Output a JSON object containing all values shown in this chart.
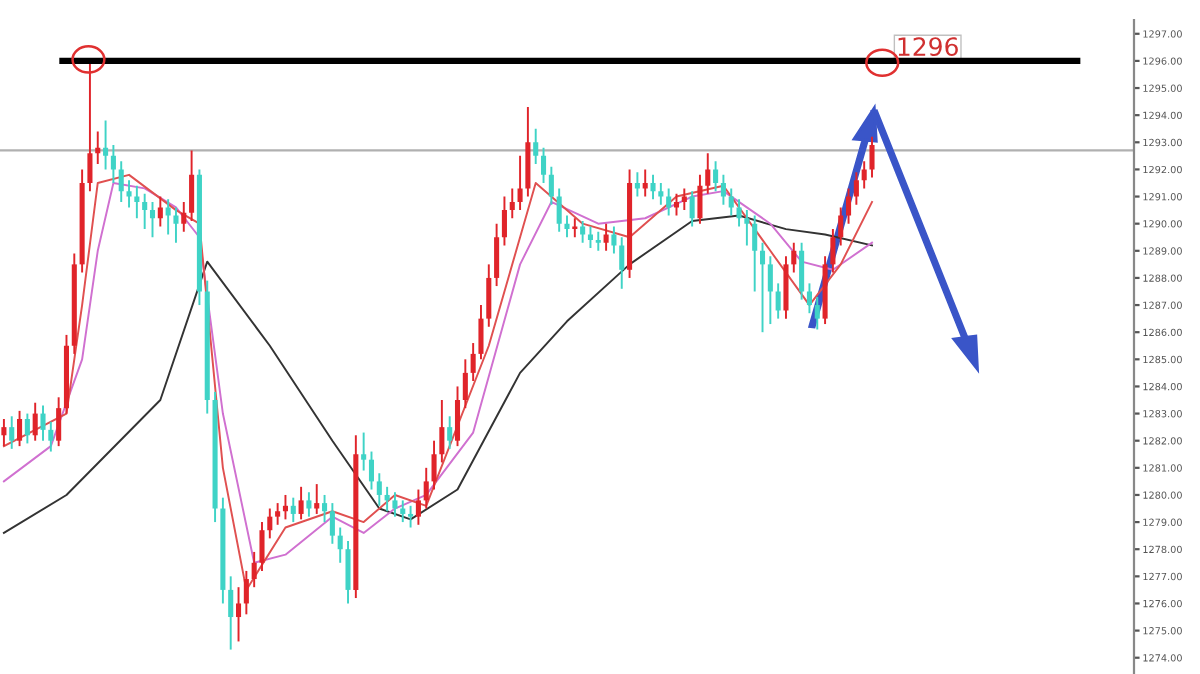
{
  "chart_data": {
    "type": "candlestick",
    "categories": [
      null,
      null,
      null,
      null,
      null,
      null,
      null,
      null,
      null,
      null,
      null,
      null,
      null,
      null,
      null,
      null,
      null,
      null,
      null,
      null,
      null,
      null,
      null,
      null,
      null,
      null,
      null,
      null,
      null,
      null,
      null,
      null,
      null,
      null,
      null,
      null,
      null,
      null,
      null,
      null,
      null,
      null,
      null,
      null,
      null,
      null,
      null,
      null,
      null,
      null,
      null,
      null,
      null,
      null,
      null,
      null,
      null,
      null,
      null,
      null,
      null,
      null,
      null,
      null,
      null,
      null,
      null,
      null,
      null,
      null,
      null,
      null,
      null,
      null,
      null,
      null,
      null,
      null,
      null,
      null,
      null,
      null,
      null,
      null,
      null,
      null,
      null,
      null,
      null,
      null,
      null,
      null,
      null,
      null,
      null,
      null,
      null,
      null,
      null,
      null,
      null,
      null,
      null,
      null,
      null,
      null,
      null,
      null,
      null,
      null,
      null,
      null,
      null,
      null,
      null,
      null,
      null,
      null,
      null,
      null,
      null,
      null,
      null,
      null,
      null,
      null,
      null,
      null,
      null,
      null,
      null,
      null,
      null,
      null,
      null,
      null,
      null,
      null,
      null,
      null,
      null,
      null,
      null,
      null,
      null
    ],
    "ohlc": [
      [
        1282.2,
        1282.8,
        1281.8,
        1282.5
      ],
      [
        1282.5,
        1282.9,
        1281.7,
        1282.0
      ],
      [
        1282.0,
        1283.1,
        1281.8,
        1282.8
      ],
      [
        1282.8,
        1283.0,
        1281.9,
        1282.2
      ],
      [
        1282.2,
        1283.4,
        1282.0,
        1283.0
      ],
      [
        1283.0,
        1283.3,
        1282.0,
        1282.4
      ],
      [
        1282.4,
        1282.7,
        1281.6,
        1282.0
      ],
      [
        1282.0,
        1283.6,
        1281.8,
        1283.2
      ],
      [
        1283.2,
        1285.9,
        1283.0,
        1285.5
      ],
      [
        1285.5,
        1288.9,
        1285.2,
        1288.5
      ],
      [
        1288.5,
        1292.0,
        1288.2,
        1291.5
      ],
      [
        1291.5,
        1296.0,
        1291.2,
        1292.6
      ],
      [
        1292.6,
        1293.4,
        1292.2,
        1292.8
      ],
      [
        1292.8,
        1293.8,
        1292.0,
        1292.5
      ],
      [
        1292.5,
        1292.9,
        1291.5,
        1292.0
      ],
      [
        1292.0,
        1292.3,
        1290.8,
        1291.2
      ],
      [
        1291.2,
        1291.6,
        1290.6,
        1291.0
      ],
      [
        1291.0,
        1291.4,
        1290.2,
        1290.8
      ],
      [
        1290.8,
        1291.1,
        1289.8,
        1290.5
      ],
      [
        1290.5,
        1290.8,
        1289.5,
        1290.2
      ],
      [
        1290.2,
        1291.0,
        1289.9,
        1290.6
      ],
      [
        1290.6,
        1290.9,
        1289.6,
        1290.3
      ],
      [
        1290.3,
        1290.6,
        1289.3,
        1290.0
      ],
      [
        1290.0,
        1290.8,
        1289.7,
        1290.4
      ],
      [
        1290.4,
        1292.7,
        1290.1,
        1291.8
      ],
      [
        1291.8,
        1292.0,
        1287.0,
        1287.5
      ],
      [
        1287.5,
        1287.9,
        1283.0,
        1283.5
      ],
      [
        1283.5,
        1283.8,
        1279.0,
        1279.5
      ],
      [
        1279.5,
        1279.9,
        1276.0,
        1276.5
      ],
      [
        1276.5,
        1277.0,
        1274.3,
        1275.5
      ],
      [
        1275.5,
        1276.6,
        1274.6,
        1276.0
      ],
      [
        1276.0,
        1277.2,
        1275.6,
        1276.9
      ],
      [
        1276.9,
        1277.9,
        1276.6,
        1277.5
      ],
      [
        1277.5,
        1279.0,
        1277.2,
        1278.7
      ],
      [
        1278.7,
        1279.5,
        1278.4,
        1279.2
      ],
      [
        1279.2,
        1279.7,
        1278.9,
        1279.4
      ],
      [
        1279.4,
        1280.0,
        1279.1,
        1279.6
      ],
      [
        1279.6,
        1279.9,
        1279.0,
        1279.3
      ],
      [
        1279.3,
        1280.3,
        1279.1,
        1279.8
      ],
      [
        1279.8,
        1280.1,
        1279.2,
        1279.5
      ],
      [
        1279.5,
        1280.4,
        1279.3,
        1279.7
      ],
      [
        1279.7,
        1280.0,
        1279.0,
        1279.4
      ],
      [
        1279.4,
        1279.7,
        1278.2,
        1278.5
      ],
      [
        1278.5,
        1278.8,
        1277.5,
        1278.0
      ],
      [
        1278.0,
        1278.3,
        1276.0,
        1276.5
      ],
      [
        1276.5,
        1282.2,
        1276.2,
        1281.5
      ],
      [
        1281.5,
        1282.3,
        1280.9,
        1281.3
      ],
      [
        1281.3,
        1281.6,
        1280.2,
        1280.5
      ],
      [
        1280.5,
        1280.8,
        1279.6,
        1280.0
      ],
      [
        1280.0,
        1280.3,
        1279.4,
        1279.8
      ],
      [
        1279.8,
        1280.1,
        1279.2,
        1279.5
      ],
      [
        1279.5,
        1279.8,
        1279.0,
        1279.3
      ],
      [
        1279.3,
        1279.6,
        1278.8,
        1279.2
      ],
      [
        1279.2,
        1280.2,
        1278.9,
        1279.8
      ],
      [
        1279.8,
        1281.0,
        1279.5,
        1280.5
      ],
      [
        1280.5,
        1282.0,
        1280.2,
        1281.5
      ],
      [
        1281.5,
        1283.5,
        1281.2,
        1282.5
      ],
      [
        1282.5,
        1282.9,
        1281.7,
        1282.0
      ],
      [
        1282.0,
        1284.0,
        1281.8,
        1283.5
      ],
      [
        1283.5,
        1285.0,
        1283.2,
        1284.5
      ],
      [
        1284.5,
        1285.6,
        1284.2,
        1285.2
      ],
      [
        1285.2,
        1287.0,
        1285.0,
        1286.5
      ],
      [
        1286.5,
        1288.5,
        1286.2,
        1288.0
      ],
      [
        1288.0,
        1290.0,
        1287.7,
        1289.5
      ],
      [
        1289.5,
        1291.0,
        1289.2,
        1290.5
      ],
      [
        1290.5,
        1291.3,
        1290.2,
        1290.8
      ],
      [
        1290.8,
        1292.5,
        1290.5,
        1291.3
      ],
      [
        1291.3,
        1294.3,
        1291.0,
        1293.0
      ],
      [
        1293.0,
        1293.5,
        1292.2,
        1292.5
      ],
      [
        1292.5,
        1292.8,
        1291.5,
        1291.8
      ],
      [
        1291.8,
        1292.1,
        1290.7,
        1291.0
      ],
      [
        1291.0,
        1291.3,
        1289.7,
        1290.0
      ],
      [
        1290.0,
        1290.3,
        1289.5,
        1289.8
      ],
      [
        1289.8,
        1290.2,
        1289.5,
        1289.9
      ],
      [
        1289.9,
        1290.1,
        1289.3,
        1289.6
      ],
      [
        1289.6,
        1289.9,
        1289.1,
        1289.4
      ],
      [
        1289.4,
        1289.7,
        1289.0,
        1289.3
      ],
      [
        1289.3,
        1290.0,
        1289.0,
        1289.6
      ],
      [
        1289.6,
        1289.9,
        1288.9,
        1289.2
      ],
      [
        1289.2,
        1289.5,
        1287.6,
        1288.3
      ],
      [
        1288.3,
        1292.0,
        1288.0,
        1291.5
      ],
      [
        1291.5,
        1291.9,
        1291.0,
        1291.3
      ],
      [
        1291.3,
        1292.0,
        1291.0,
        1291.5
      ],
      [
        1291.5,
        1291.8,
        1290.9,
        1291.2
      ],
      [
        1291.2,
        1291.5,
        1290.7,
        1291.0
      ],
      [
        1291.0,
        1291.3,
        1290.3,
        1290.6
      ],
      [
        1290.6,
        1291.1,
        1290.3,
        1290.8
      ],
      [
        1290.8,
        1291.3,
        1290.5,
        1291.0
      ],
      [
        1291.0,
        1291.2,
        1289.9,
        1290.2
      ],
      [
        1290.2,
        1291.8,
        1290.0,
        1291.4
      ],
      [
        1291.4,
        1292.6,
        1291.1,
        1292.0
      ],
      [
        1292.0,
        1292.3,
        1291.2,
        1291.5
      ],
      [
        1291.5,
        1291.8,
        1290.7,
        1291.0
      ],
      [
        1291.0,
        1291.3,
        1290.3,
        1290.6
      ],
      [
        1290.6,
        1290.9,
        1289.9,
        1290.2
      ],
      [
        1290.2,
        1290.5,
        1289.2,
        1290.0
      ],
      [
        1290.0,
        1290.3,
        1287.5,
        1289.0
      ],
      [
        1289.0,
        1289.3,
        1286.0,
        1288.5
      ],
      [
        1288.5,
        1288.8,
        1286.3,
        1287.5
      ],
      [
        1287.5,
        1287.8,
        1286.5,
        1286.8
      ],
      [
        1286.8,
        1288.8,
        1286.5,
        1288.5
      ],
      [
        1288.5,
        1289.3,
        1288.2,
        1289.0
      ],
      [
        1289.0,
        1289.3,
        1287.2,
        1287.5
      ],
      [
        1287.5,
        1287.8,
        1286.7,
        1287.0
      ],
      [
        1287.0,
        1287.3,
        1286.1,
        1286.5
      ],
      [
        1286.5,
        1288.8,
        1286.3,
        1288.5
      ],
      [
        1288.5,
        1289.8,
        1288.2,
        1289.5
      ],
      [
        1289.5,
        1290.6,
        1289.2,
        1290.3
      ],
      [
        1290.3,
        1291.3,
        1290.0,
        1291.0
      ],
      [
        1291.0,
        1291.9,
        1290.7,
        1291.6
      ],
      [
        1291.6,
        1292.3,
        1291.3,
        1292.0
      ],
      [
        1292.0,
        1293.2,
        1291.7,
        1292.9
      ],
      null,
      null,
      null,
      null,
      null,
      null,
      null,
      null,
      null,
      null,
      null,
      null,
      null,
      null,
      null,
      null,
      null,
      null,
      null,
      null,
      null,
      null,
      null,
      null,
      null,
      null,
      null,
      null,
      null,
      null,
      null,
      null,
      null
    ],
    "colors": [
      "#e0242a",
      "#3fd3c6",
      "#e0242a",
      "#3fd3c6",
      "#e0242a",
      "#3fd3c6",
      "#3fd3c6",
      "#e0242a",
      "#e0242a",
      "#e0242a",
      "#e0242a",
      "#e0242a",
      "#e0242a",
      "#3fd3c6",
      "#3fd3c6",
      "#3fd3c6",
      "#3fd3c6",
      "#3fd3c6",
      "#3fd3c6",
      "#3fd3c6",
      "#e0242a",
      "#3fd3c6",
      "#3fd3c6",
      "#e0242a",
      "#e0242a",
      "#3fd3c6",
      "#3fd3c6",
      "#3fd3c6",
      "#3fd3c6",
      "#3fd3c6",
      "#e0242a",
      "#e0242a",
      "#e0242a",
      "#e0242a",
      "#e0242a",
      "#e0242a",
      "#e0242a",
      "#3fd3c6",
      "#e0242a",
      "#3fd3c6",
      "#e0242a",
      "#3fd3c6",
      "#3fd3c6",
      "#3fd3c6",
      "#3fd3c6",
      "#e0242a",
      "#3fd3c6",
      "#3fd3c6",
      "#3fd3c6",
      "#3fd3c6",
      "#3fd3c6",
      "#3fd3c6",
      "#3fd3c6",
      "#e0242a",
      "#e0242a",
      "#e0242a",
      "#e0242a",
      "#3fd3c6",
      "#e0242a",
      "#e0242a",
      "#e0242a",
      "#e0242a",
      "#e0242a",
      "#e0242a",
      "#e0242a",
      "#e0242a",
      "#e0242a",
      "#e0242a",
      "#3fd3c6",
      "#3fd3c6",
      "#3fd3c6",
      "#3fd3c6",
      "#3fd3c6",
      "#e0242a",
      "#3fd3c6",
      "#3fd3c6",
      "#3fd3c6",
      "#e0242a",
      "#3fd3c6",
      "#3fd3c6",
      "#e0242a",
      "#3fd3c6",
      "#e0242a",
      "#3fd3c6",
      "#3fd3c6",
      "#3fd3c6",
      "#e0242a",
      "#e0242a",
      "#3fd3c6",
      "#e0242a",
      "#e0242a",
      "#3fd3c6",
      "#3fd3c6",
      "#3fd3c6",
      "#3fd3c6",
      "#3fd3c6",
      "#3fd3c6",
      "#3fd3c6",
      "#3fd3c6",
      "#3fd3c6",
      "#e0242a",
      "#e0242a",
      "#3fd3c6",
      "#3fd3c6",
      "#3fd3c6",
      "#e0242a",
      "#e0242a",
      "#e0242a",
      "#e0242a",
      "#e0242a",
      "#e0242a",
      "#e0242a",
      null,
      null,
      null,
      null,
      null,
      null,
      null,
      null,
      null,
      null,
      null,
      null,
      null,
      null,
      null,
      null,
      null,
      null,
      null,
      null,
      null,
      null,
      null,
      null,
      null,
      null,
      null,
      null,
      null,
      null,
      null,
      null,
      null
    ],
    "series": [
      {
        "type": "line",
        "color": "#333333",
        "values": [
          1278.6,
          null,
          null,
          null,
          null,
          null,
          null,
          null,
          1280.0,
          null,
          null,
          null,
          null,
          null,
          null,
          null,
          null,
          null,
          null,
          null,
          1283.5,
          null,
          null,
          null,
          null,
          null,
          1288.6,
          null,
          null,
          null,
          null,
          null,
          null,
          null,
          1285.5,
          null,
          null,
          null,
          null,
          null,
          null,
          null,
          1282.0,
          null,
          null,
          null,
          null,
          null,
          1279.5,
          null,
          null,
          null,
          1279.1,
          null,
          null,
          null,
          null,
          null,
          1280.2,
          null,
          null,
          null,
          null,
          null,
          null,
          null,
          1284.5,
          null,
          null,
          null,
          null,
          null,
          1286.4,
          null,
          null,
          null,
          null,
          null,
          null,
          null,
          1288.5,
          null,
          null,
          null,
          null,
          null,
          null,
          null,
          1290.1,
          null,
          null,
          null,
          null,
          null,
          1290.3,
          null,
          null,
          null,
          null,
          null,
          1289.8,
          null,
          null,
          null,
          null,
          1289.6,
          null,
          null,
          null,
          null,
          null,
          1289.2,
          null,
          null,
          null,
          null,
          null,
          null,
          null,
          null,
          null,
          null,
          null,
          null,
          null,
          null,
          null,
          null,
          null,
          null,
          null,
          null,
          null,
          null,
          null,
          null,
          null,
          null,
          null,
          null,
          null,
          null,
          null,
          null,
          null
        ]
      },
      {
        "type": "line",
        "color": "#d070d0",
        "values": [
          1280.5,
          null,
          null,
          null,
          null,
          null,
          1281.8,
          null,
          null,
          null,
          1285.0,
          null,
          1289.0,
          null,
          1291.5,
          null,
          null,
          null,
          1291.3,
          null,
          null,
          null,
          1290.6,
          null,
          null,
          1289.5,
          null,
          null,
          1283.0,
          null,
          null,
          null,
          1277.5,
          null,
          null,
          null,
          1277.8,
          null,
          null,
          null,
          null,
          null,
          1279.2,
          null,
          null,
          null,
          1278.6,
          null,
          null,
          null,
          1279.5,
          null,
          null,
          null,
          1280.0,
          null,
          null,
          null,
          null,
          null,
          1282.3,
          null,
          null,
          null,
          null,
          null,
          1288.5,
          null,
          null,
          null,
          1290.8,
          null,
          null,
          null,
          null,
          null,
          1290.0,
          null,
          null,
          null,
          null,
          null,
          1290.2,
          null,
          null,
          null,
          null,
          null,
          1291.0,
          null,
          null,
          null,
          1291.2,
          null,
          null,
          null,
          null,
          null,
          1290.0,
          null,
          null,
          null,
          1288.6,
          null,
          null,
          null,
          1288.3,
          null,
          null,
          null,
          null,
          1289.3,
          null,
          null,
          null,
          null,
          null,
          null,
          null,
          null,
          null,
          null,
          null,
          null,
          null,
          null,
          null,
          null,
          null,
          null,
          null,
          null,
          null,
          null,
          null,
          null,
          null,
          null,
          null,
          null,
          null,
          null,
          null,
          null,
          null
        ]
      },
      {
        "type": "line",
        "color": "#e05050",
        "values": [
          1281.8,
          null,
          null,
          null,
          null,
          null,
          null,
          null,
          1283.0,
          null,
          1287.0,
          null,
          1291.5,
          null,
          null,
          null,
          1291.8,
          null,
          null,
          null,
          null,
          null,
          1290.5,
          null,
          null,
          1290.0,
          null,
          null,
          1281.0,
          null,
          null,
          1276.5,
          null,
          null,
          null,
          null,
          1278.8,
          null,
          null,
          null,
          null,
          null,
          1279.4,
          null,
          null,
          null,
          1279.0,
          null,
          null,
          null,
          1280.0,
          null,
          null,
          null,
          1279.6,
          null,
          null,
          null,
          null,
          null,
          null,
          null,
          1285.5,
          null,
          null,
          null,
          null,
          null,
          1291.5,
          null,
          null,
          null,
          null,
          null,
          1290.0,
          null,
          null,
          null,
          null,
          null,
          1289.5,
          null,
          null,
          null,
          null,
          null,
          1291.0,
          null,
          null,
          null,
          null,
          null,
          1291.4,
          null,
          null,
          null,
          null,
          null,
          1289.0,
          null,
          null,
          null,
          null,
          1287.0,
          null,
          null,
          null,
          1288.5,
          null,
          null,
          null,
          1290.8,
          null,
          null,
          null,
          null,
          null,
          null,
          null,
          null,
          null,
          null,
          null,
          null,
          null,
          null,
          null,
          null,
          null,
          null,
          null,
          null,
          null,
          null,
          null,
          null,
          null,
          null,
          null,
          null,
          null,
          null,
          null,
          null,
          null
        ]
      }
    ],
    "ylim": [
      1273.4,
      1297.5
    ],
    "yticks": [
      {
        "value": 1274,
        "label": "1274.00"
      },
      {
        "value": 1275,
        "label": "1275.00"
      },
      {
        "value": 1276,
        "label": "1276.00"
      },
      {
        "value": 1277,
        "label": "1277.00"
      },
      {
        "value": 1278,
        "label": "1278.00"
      },
      {
        "value": 1279,
        "label": "1279.00"
      },
      {
        "value": 1280,
        "label": "1280.00"
      },
      {
        "value": 1281,
        "label": "1281.00"
      },
      {
        "value": 1282,
        "label": "1282.00"
      },
      {
        "value": 1283,
        "label": "1283.00"
      },
      {
        "value": 1284,
        "label": "1284.00"
      },
      {
        "value": 1285,
        "label": "1285.00"
      },
      {
        "value": 1286,
        "label": "1286.00"
      },
      {
        "value": 1287,
        "label": "1287.00"
      },
      {
        "value": 1288,
        "label": "1288.00"
      },
      {
        "value": 1289,
        "label": "1289.00"
      },
      {
        "value": 1290,
        "label": "1290.00"
      },
      {
        "value": 1291,
        "label": "1291.00"
      },
      {
        "value": 1292,
        "label": "1292.00"
      },
      {
        "value": 1293,
        "label": "1293.00"
      },
      {
        "value": 1294,
        "label": "1294.00"
      },
      {
        "value": 1295,
        "label": "1295.00"
      },
      {
        "value": 1296,
        "label": "1296.00"
      },
      {
        "value": 1297,
        "label": "1297.00"
      }
    ],
    "ref_lines": [
      {
        "axis": "y",
        "value": 1296,
        "label": "1296",
        "color": "#000000"
      },
      {
        "axis": "y",
        "value": 1292.7,
        "color": "#b0b0b0"
      }
    ],
    "grid": false
  }
}
